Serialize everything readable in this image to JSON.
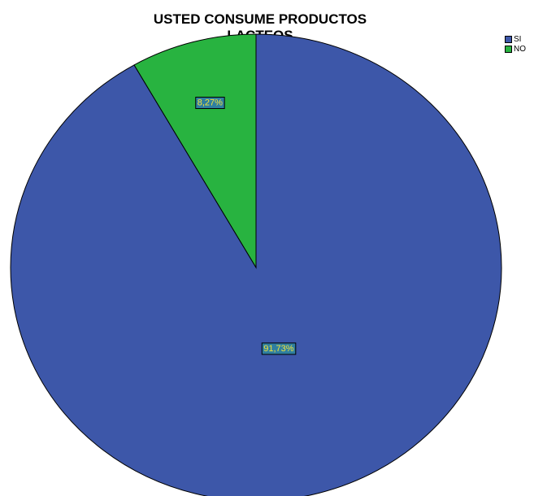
{
  "chart_data": {
    "type": "pie",
    "title": "USTED CONSUME PRODUCTOS LACTEOS",
    "categories": [
      "SI",
      "NO"
    ],
    "values": [
      91.73,
      8.27
    ],
    "data_labels": [
      "91,73%",
      "8,27%"
    ],
    "colors": [
      "#3d57a9",
      "#28b340"
    ],
    "label_box_fill": "#2f7fa0",
    "label_text_color": "#f2e33a",
    "legend_position": "top-right",
    "start_angle_deg": 0,
    "direction": "counterclockwise"
  }
}
